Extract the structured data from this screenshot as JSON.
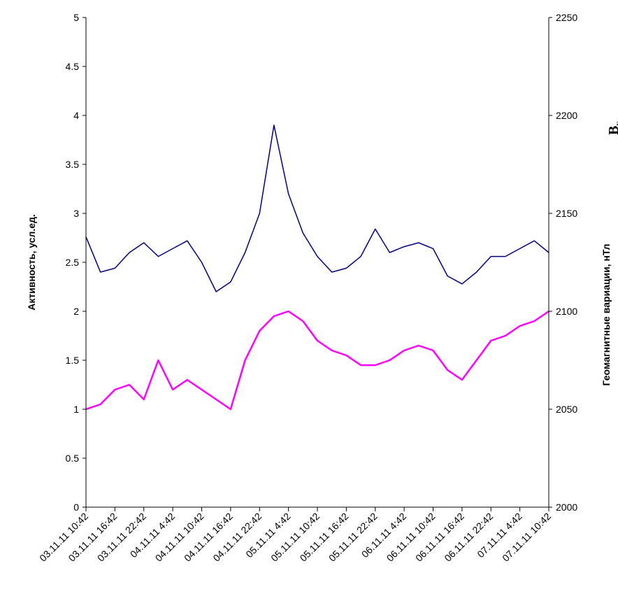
{
  "chart_data": {
    "type": "line",
    "title": "",
    "xlabel": "",
    "ylabel": "Активность, усл.ед.",
    "y2label": "Геомагнитные вариации, нТл",
    "y2_symbol": "B",
    "y2_symbol_sub": "y",
    "ylim": [
      0,
      5
    ],
    "y2lim": [
      2000,
      2250
    ],
    "yticks": [
      "0",
      "0.5",
      "1",
      "1.5",
      "2",
      "2.5",
      "3",
      "3.5",
      "4",
      "4.5",
      "5"
    ],
    "y2ticks": [
      "2000",
      "2050",
      "2100",
      "2150",
      "2200",
      "2250"
    ],
    "x_tick_labels": [
      "03.11.11 10:42",
      "03.11.11 16:42",
      "03.11.11 22:42",
      "04.11.11 4:42",
      "04.11.11 10:42",
      "04.11.11 16:42",
      "04.11.11 22:42",
      "05.11.11 4:42",
      "05.11.11 10:42",
      "05.11.11 16:42",
      "05.11.11 22:42",
      "06.11.11 4:42",
      "06.11.11 10:42",
      "06.11.11 16:42",
      "06.11.11 22:42",
      "07.11.11 4:42",
      "07.11.11 10:42"
    ],
    "grid": false,
    "series": [
      {
        "axis": "right",
        "color": "#000080",
        "x": [
          "03.11.11 10:42",
          "03.11.11 13:42",
          "03.11.11 16:42",
          "03.11.11 19:42",
          "03.11.11 22:42",
          "04.11.11 1:42",
          "04.11.11 4:42",
          "04.11.11 7:42",
          "04.11.11 10:42",
          "04.11.11 13:42",
          "04.11.11 16:42",
          "04.11.11 19:42",
          "04.11.11 22:42",
          "05.11.11 1:42",
          "05.11.11 4:42",
          "05.11.11 7:42",
          "05.11.11 10:42",
          "05.11.11 13:42",
          "05.11.11 16:42",
          "05.11.11 19:42",
          "05.11.11 22:42",
          "06.11.11 1:42",
          "06.11.11 4:42",
          "06.11.11 7:42",
          "06.11.11 10:42",
          "06.11.11 13:42",
          "06.11.11 16:42",
          "06.11.11 19:42",
          "06.11.11 22:42",
          "07.11.11 1:42",
          "07.11.11 4:42",
          "07.11.11 7:42",
          "07.11.11 10:42"
        ],
        "values": [
          2138,
          2120,
          2122,
          2130,
          2135,
          2128,
          2132,
          2136,
          2125,
          2110,
          2115,
          2130,
          2150,
          2195,
          2160,
          2140,
          2128,
          2120,
          2122,
          2128,
          2142,
          2130,
          2133,
          2135,
          2132,
          2118,
          2114,
          2120,
          2128,
          2128,
          2132,
          2136,
          2130
        ]
      },
      {
        "axis": "left",
        "color": "#ff00ff",
        "x": [
          "03.11.11 10:42",
          "03.11.11 13:42",
          "03.11.11 16:42",
          "03.11.11 19:42",
          "03.11.11 22:42",
          "04.11.11 1:42",
          "04.11.11 4:42",
          "04.11.11 7:42",
          "04.11.11 10:42",
          "04.11.11 13:42",
          "04.11.11 16:42",
          "04.11.11 19:42",
          "04.11.11 22:42",
          "05.11.11 1:42",
          "05.11.11 4:42",
          "05.11.11 7:42",
          "05.11.11 10:42",
          "05.11.11 13:42",
          "05.11.11 16:42",
          "05.11.11 19:42",
          "05.11.11 22:42",
          "06.11.11 1:42",
          "06.11.11 4:42",
          "06.11.11 7:42",
          "06.11.11 10:42",
          "06.11.11 13:42",
          "06.11.11 16:42",
          "06.11.11 19:42",
          "06.11.11 22:42",
          "07.11.11 1:42",
          "07.11.11 4:42",
          "07.11.11 7:42",
          "07.11.11 10:42"
        ],
        "values": [
          1.0,
          1.05,
          1.2,
          1.25,
          1.1,
          1.5,
          1.2,
          1.3,
          1.2,
          1.1,
          1.0,
          1.5,
          1.8,
          1.95,
          2.0,
          1.9,
          1.7,
          1.6,
          1.55,
          1.45,
          1.45,
          1.5,
          1.6,
          1.65,
          1.6,
          1.4,
          1.3,
          1.5,
          1.7,
          1.75,
          1.85,
          1.9,
          2.0
        ]
      }
    ]
  }
}
